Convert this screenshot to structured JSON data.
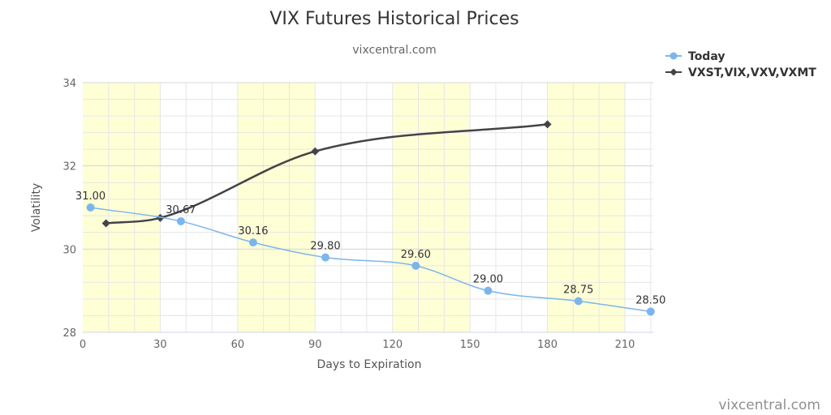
{
  "chart_data": {
    "type": "line",
    "title": "VIX Futures Historical Prices",
    "subtitle": "vixcentral.com",
    "xlabel": "Days to Expiration",
    "ylabel": "Volatility",
    "xlim": [
      0,
      221
    ],
    "ylim": [
      28,
      34
    ],
    "x_ticks": [
      0,
      30,
      60,
      90,
      120,
      150,
      180,
      210
    ],
    "y_ticks": [
      28,
      30,
      32,
      34
    ],
    "grid": true,
    "x_minor_step": 10,
    "y_minor_step": 0.4,
    "shaded_bands": [
      [
        0,
        30
      ],
      [
        60,
        90
      ],
      [
        120,
        150
      ],
      [
        180,
        210
      ]
    ],
    "legend_position": "top-right",
    "series": [
      {
        "name": "Today",
        "color": "#7cb5ec",
        "marker": "circle",
        "show_labels": true,
        "points": [
          {
            "x": 3,
            "y": 31.0,
            "label": "31.00"
          },
          {
            "x": 38,
            "y": 30.67,
            "label": "30.67"
          },
          {
            "x": 66,
            "y": 30.16,
            "label": "30.16"
          },
          {
            "x": 94,
            "y": 29.8,
            "label": "29.80"
          },
          {
            "x": 129,
            "y": 29.6,
            "label": "29.60"
          },
          {
            "x": 157,
            "y": 29.0,
            "label": "29.00"
          },
          {
            "x": 192,
            "y": 28.75,
            "label": "28.75"
          },
          {
            "x": 220,
            "y": 28.5,
            "label": "28.50"
          }
        ]
      },
      {
        "name": "VXST,VIX,VXV,VXMT",
        "color": "#434348",
        "marker": "diamond",
        "show_labels": false,
        "points": [
          {
            "x": 9,
            "y": 30.62
          },
          {
            "x": 30,
            "y": 30.75
          },
          {
            "x": 90,
            "y": 32.35
          },
          {
            "x": 180,
            "y": 33.0
          }
        ]
      }
    ],
    "band_color": "#ffffd6",
    "grid_color": "#e6e6e6"
  },
  "credit": "vixcentral.com"
}
